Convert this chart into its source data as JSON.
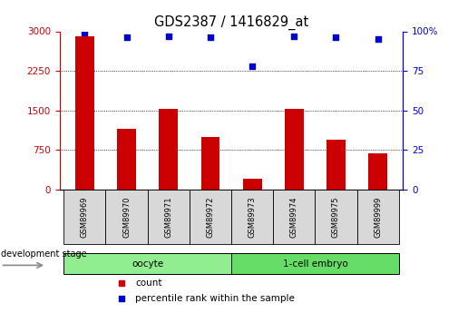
{
  "title": "GDS2387 / 1416829_at",
  "samples": [
    "GSM89969",
    "GSM89970",
    "GSM89971",
    "GSM89972",
    "GSM89973",
    "GSM89974",
    "GSM89975",
    "GSM89999"
  ],
  "counts": [
    2900,
    1150,
    1530,
    1000,
    200,
    1530,
    950,
    680
  ],
  "percentile_ranks": [
    99,
    96,
    97,
    96,
    78,
    97,
    96,
    95
  ],
  "group_defs": [
    {
      "start": 0,
      "end": 3,
      "label": "oocyte",
      "color": "#90ee90"
    },
    {
      "start": 4,
      "end": 7,
      "label": "1-cell embryo",
      "color": "#66dd66"
    }
  ],
  "bar_color": "#cc0000",
  "dot_color": "#0000cc",
  "tick_color_left": "#cc0000",
  "tick_color_right": "#0000cc",
  "left_yticks": [
    0,
    750,
    1500,
    2250,
    3000
  ],
  "right_yticks": [
    0,
    25,
    50,
    75,
    100
  ],
  "ylim_left": [
    0,
    3000
  ],
  "ylim_right": [
    0,
    100
  ],
  "grid_yticks": [
    750,
    1500,
    2250
  ],
  "legend_items": [
    {
      "color": "#cc0000",
      "label": "count"
    },
    {
      "color": "#0000cc",
      "label": "percentile rank within the sample"
    }
  ],
  "development_stage_label": "development stage"
}
